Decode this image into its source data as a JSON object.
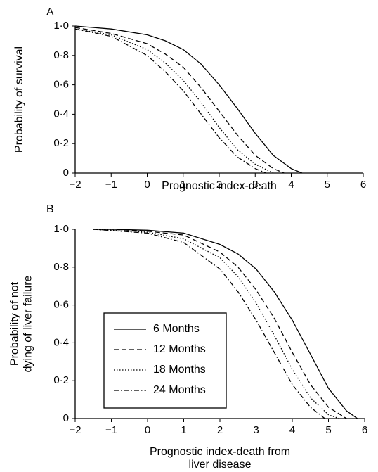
{
  "chart_data": [
    {
      "type": "line",
      "panel_label": "A",
      "ylabel": [
        "Probability of survival"
      ],
      "xlabel": [
        "Prognostic index-death"
      ],
      "xlim": [
        -2,
        6
      ],
      "ylim": [
        0,
        1
      ],
      "xticks": [
        {
          "value": -2,
          "label": "−2"
        },
        {
          "value": -1,
          "label": "−1"
        },
        0,
        1,
        2,
        3,
        4,
        5,
        6
      ],
      "yticks": [
        0,
        {
          "value": 0.2,
          "label": "0·2"
        },
        {
          "value": 0.4,
          "label": "0·4"
        },
        {
          "value": 0.6,
          "label": "0·6"
        },
        {
          "value": 0.8,
          "label": "0·8"
        },
        {
          "value": 1,
          "label": "1·0"
        }
      ],
      "series": [
        {
          "style": "solid",
          "color": "#000000",
          "x": [
            -2,
            -1,
            0,
            0.5,
            1,
            1.5,
            2,
            2.5,
            3,
            3.5,
            4,
            4.3
          ],
          "values": [
            1.0,
            0.98,
            0.94,
            0.9,
            0.84,
            0.74,
            0.6,
            0.44,
            0.27,
            0.12,
            0.03,
            0
          ]
        },
        {
          "style": "dashed",
          "color": "#000000",
          "x": [
            -2,
            -1,
            0,
            0.5,
            1,
            1.5,
            2,
            2.5,
            3,
            3.5,
            3.8
          ],
          "values": [
            0.99,
            0.95,
            0.88,
            0.81,
            0.72,
            0.58,
            0.42,
            0.26,
            0.12,
            0.03,
            0
          ]
        },
        {
          "style": "dotted",
          "color": "#000000",
          "x": [
            -2,
            -1,
            0,
            0.5,
            1,
            1.5,
            2,
            2.5,
            3,
            3.5
          ],
          "values": [
            0.98,
            0.94,
            0.84,
            0.75,
            0.63,
            0.48,
            0.31,
            0.16,
            0.06,
            0
          ]
        },
        {
          "style": "dashdot",
          "color": "#000000",
          "x": [
            -2,
            -1,
            0,
            0.5,
            1,
            1.5,
            2,
            2.5,
            3,
            3.3
          ],
          "values": [
            0.98,
            0.93,
            0.8,
            0.69,
            0.56,
            0.4,
            0.24,
            0.11,
            0.03,
            0
          ]
        }
      ]
    },
    {
      "type": "line",
      "panel_label": "B",
      "ylabel": [
        "Probability of not",
        "dying of liver failure"
      ],
      "xlabel": [
        "Prognostic index-death from",
        "liver disease"
      ],
      "xlim": [
        -2,
        6
      ],
      "ylim": [
        0,
        1
      ],
      "xticks": [
        {
          "value": -2,
          "label": "−2"
        },
        {
          "value": -1,
          "label": "−1"
        },
        0,
        1,
        2,
        3,
        4,
        5,
        6
      ],
      "yticks": [
        0,
        {
          "value": 0.2,
          "label": "0·2"
        },
        {
          "value": 0.4,
          "label": "0·4"
        },
        {
          "value": 0.6,
          "label": "0·6"
        },
        {
          "value": 0.8,
          "label": "0·8"
        },
        {
          "value": 1,
          "label": "1·0"
        }
      ],
      "legend": "center-left",
      "series": [
        {
          "name": "6 Months",
          "style": "solid",
          "color": "#000000",
          "x": [
            -1.5,
            -1,
            0,
            1,
            2,
            2.5,
            3,
            3.5,
            4,
            4.5,
            5,
            5.5,
            5.8
          ],
          "values": [
            1,
            1,
            0.995,
            0.98,
            0.92,
            0.87,
            0.79,
            0.67,
            0.52,
            0.34,
            0.16,
            0.04,
            0
          ]
        },
        {
          "name": "12 Months",
          "style": "dashed",
          "color": "#000000",
          "x": [
            -1.5,
            -1,
            0,
            1,
            2,
            2.5,
            3,
            3.5,
            4,
            4.5,
            5,
            5.5
          ],
          "values": [
            1,
            1,
            0.99,
            0.97,
            0.88,
            0.8,
            0.68,
            0.53,
            0.35,
            0.18,
            0.06,
            0
          ]
        },
        {
          "name": "18 Months",
          "style": "dotted",
          "color": "#000000",
          "x": [
            -1.5,
            0,
            1,
            2,
            2.5,
            3,
            3.5,
            4,
            4.5,
            5,
            5.3
          ],
          "values": [
            1,
            0.985,
            0.95,
            0.85,
            0.75,
            0.61,
            0.44,
            0.26,
            0.11,
            0.02,
            0
          ]
        },
        {
          "name": "24 Months",
          "style": "dashdot",
          "color": "#000000",
          "x": [
            -1.5,
            0,
            1,
            2,
            2.5,
            3,
            3.5,
            4,
            4.5,
            4.9
          ],
          "values": [
            1,
            0.98,
            0.93,
            0.79,
            0.67,
            0.52,
            0.35,
            0.18,
            0.06,
            0
          ]
        }
      ]
    }
  ]
}
